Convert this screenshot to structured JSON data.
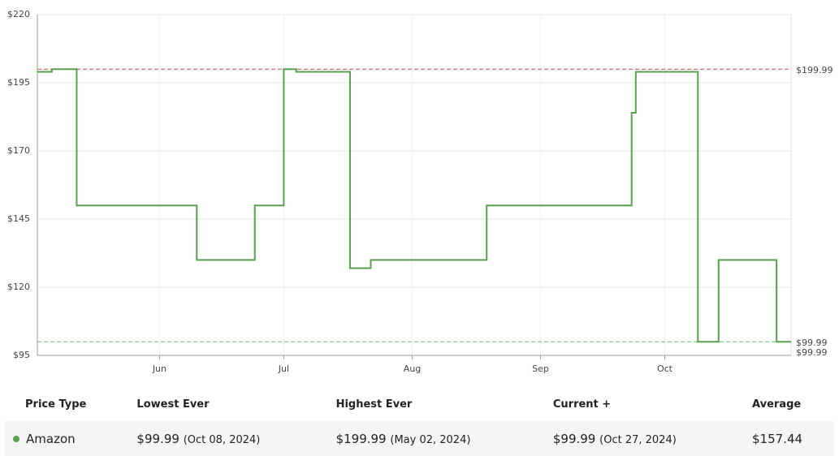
{
  "chart_data": {
    "type": "step-line",
    "x": [
      123.5,
      127,
      133,
      162,
      176,
      183,
      186,
      199,
      204,
      232,
      267,
      268,
      283,
      288,
      302,
      305.5
    ],
    "series": [
      {
        "name": "Amazon",
        "color": "#5a9f4f",
        "values": [
          199,
          199.99,
          149.99,
          129.99,
          149.99,
          199.99,
          199,
          126.99,
          129.99,
          149.99,
          183.99,
          199,
          99.99,
          129.99,
          99.99,
          99.99
        ]
      }
    ],
    "xlim": [
      123.5,
      305.5
    ],
    "xticks": [
      {
        "value": 153,
        "label": "Jun"
      },
      {
        "value": 183,
        "label": "Jul"
      },
      {
        "value": 214,
        "label": "Aug"
      },
      {
        "value": 245,
        "label": "Sep"
      },
      {
        "value": 275,
        "label": "Oct"
      }
    ],
    "ylim": [
      95,
      220
    ],
    "yticks": [
      {
        "value": 95,
        "label": "$95"
      },
      {
        "value": 120,
        "label": "$120"
      },
      {
        "value": 145,
        "label": "$145"
      },
      {
        "value": 170,
        "label": "$170"
      },
      {
        "value": 195,
        "label": "$195"
      },
      {
        "value": 220,
        "label": "$220"
      }
    ],
    "grid": true,
    "reference_lines": [
      {
        "value": 199.99,
        "label": "$199.99",
        "color": "#c9504f"
      },
      {
        "value": 99.99,
        "label": "$99.99",
        "color": "#6db86d"
      }
    ],
    "current_label": {
      "value": 99.99,
      "label": "$99.99",
      "color": "#6db86d"
    }
  },
  "table": {
    "headers": [
      "Price Type",
      "Lowest Ever",
      "Highest Ever",
      "Current +",
      "Average"
    ],
    "rows": [
      [
        {
          "text": "Amazon"
        },
        {
          "price": "$99.99",
          "date": "(Oct 08, 2024)"
        },
        {
          "price": "$199.99",
          "date": "(May 02, 2024)"
        },
        {
          "price": "$99.99",
          "date": "(Oct 27, 2024)"
        },
        {
          "price": "$157.44"
        }
      ]
    ]
  }
}
